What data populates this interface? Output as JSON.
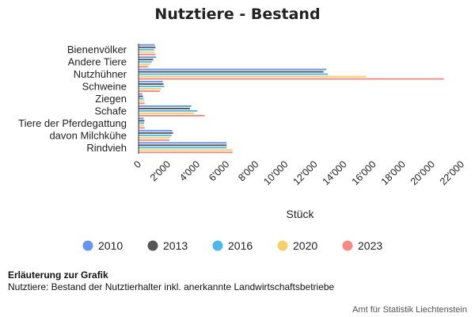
{
  "chart_data": {
    "type": "bar",
    "orientation": "horizontal",
    "title": "Nutztiere - Bestand",
    "xlabel": "Stück",
    "ylabel": "",
    "categories": [
      "Bienenvölker",
      "Andere Tiere",
      "Nutzhühner",
      "Schweine",
      "Ziegen",
      "Schafe",
      "Tiere der Pferdegattung",
      "davon Milchkühe",
      "Rindvieh"
    ],
    "series": [
      {
        "name": "2010",
        "color": "#6694f2",
        "values": [
          1100,
          1200,
          12800,
          1650,
          250,
          3600,
          350,
          2300,
          6000
        ]
      },
      {
        "name": "2013",
        "color": "#555555",
        "values": [
          1150,
          1000,
          12600,
          1700,
          300,
          3500,
          400,
          2350,
          6000
        ]
      },
      {
        "name": "2016",
        "color": "#4ab8ea",
        "values": [
          1050,
          900,
          12900,
          1750,
          350,
          4000,
          380,
          2250,
          6000
        ]
      },
      {
        "name": "2020",
        "color": "#f5cf6a",
        "values": [
          1100,
          800,
          15500,
          1550,
          400,
          3800,
          360,
          2150,
          6400
        ]
      },
      {
        "name": "2023",
        "color": "#f88a86",
        "values": [
          1150,
          650,
          20800,
          1450,
          420,
          4500,
          420,
          2100,
          6400
        ]
      }
    ],
    "xlim": [
      0,
      22000
    ],
    "ticks": [
      "0",
      "2'000",
      "4'000",
      "6'000",
      "8'000",
      "10'000",
      "12'000",
      "14'000",
      "16'000",
      "18'000",
      "20'000",
      "22'000"
    ],
    "legend": "bottom",
    "grid": false
  },
  "notes": {
    "heading": "Erläuterung zur Grafik",
    "text": "Nutztiere: Bestand der Nutztierhalter inkl. anerkannte Landwirtschaftsbetriebe"
  },
  "source": "Amt für Statistik Liechtenstein"
}
